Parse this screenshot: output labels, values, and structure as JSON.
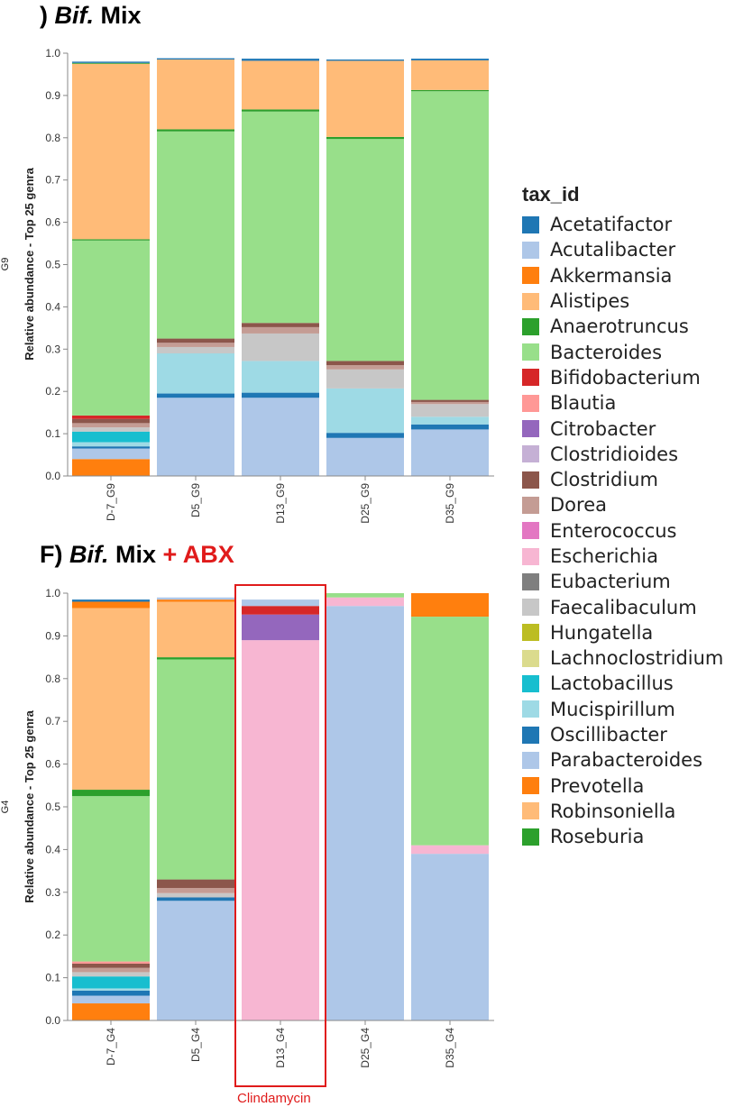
{
  "legend_title": "tax_id",
  "colors": {
    "Acetatifactor": "#1f77b4",
    "Acutalibacter": "#aec7e8",
    "Akkermansia": "#ff7f0e",
    "Alistipes": "#ffbb78",
    "Anaerotruncus": "#2ca02c",
    "Bacteroides": "#98df8a",
    "Bifidobacterium": "#d62728",
    "Blautia": "#ff9896",
    "Citrobacter": "#9467bd",
    "Clostridioides": "#c5b0d5",
    "Clostridium": "#8c564b",
    "Dorea": "#c49c94",
    "Enterococcus": "#e377c2",
    "Escherichia": "#f7b6d2",
    "Eubacterium": "#7f7f7f",
    "Faecalibaculum": "#c7c7c7",
    "Hungatella": "#bcbd22",
    "Lachnoclostridium": "#dbdb8d",
    "Lactobacillus": "#17becf",
    "Mucispirillum": "#9edae5",
    "Oscillibacter": "#1f77b4",
    "Parabacteroides": "#aec7e8",
    "Prevotella": "#ff7f0e",
    "Robinsoniella": "#ffbb78",
    "Roseburia": "#2ca02c"
  },
  "chart_data": [
    {
      "type": "bar",
      "stacked": true,
      "title": ") Bif. Mix",
      "title_parts": [
        {
          "text": ") ",
          "style": "normal"
        },
        {
          "text": "Bif.",
          "style": "italic"
        },
        {
          "text": " Mix",
          "style": "normal"
        }
      ],
      "side_label": "G9",
      "ylabel": "Relative abundance - Top 25 genra",
      "ylim": [
        0,
        1.0
      ],
      "yticks": [
        "0.0",
        "0.1",
        "0.2",
        "0.3",
        "0.4",
        "0.5",
        "0.6",
        "0.7",
        "0.8",
        "0.9",
        "1.0"
      ],
      "grid": false,
      "categories": [
        "D-7_G9",
        "D5_G9",
        "D13_G9",
        "D25_G9",
        "D35_G9"
      ],
      "stacks": [
        [
          [
            "Akkermansia",
            0.04
          ],
          [
            "Acutalibacter",
            0.025
          ],
          [
            "Oscillibacter",
            0.005
          ],
          [
            "Mucispirillum",
            0.01
          ],
          [
            "Lactobacillus",
            0.025
          ],
          [
            "Faecalibaculum",
            0.01
          ],
          [
            "Dorea",
            0.01
          ],
          [
            "Clostridium",
            0.01
          ],
          [
            "Bifidobacterium",
            0.008
          ],
          [
            "Bacteroides",
            0.414
          ],
          [
            "Anaerotruncus",
            0.003
          ],
          [
            "Alistipes",
            0.415
          ],
          [
            "Roseburia",
            0.002
          ],
          [
            "Acetatifactor",
            0.003
          ]
        ],
        [
          [
            "Parabacteroides",
            0.185
          ],
          [
            "Oscillibacter",
            0.01
          ],
          [
            "Mucispirillum",
            0.095
          ],
          [
            "Faecalibaculum",
            0.015
          ],
          [
            "Dorea",
            0.01
          ],
          [
            "Clostridium",
            0.01
          ],
          [
            "Bacteroides",
            0.49
          ],
          [
            "Anaerotruncus",
            0.005
          ],
          [
            "Alistipes",
            0.165
          ],
          [
            "Acetatifactor",
            0.003
          ]
        ],
        [
          [
            "Parabacteroides",
            0.185
          ],
          [
            "Oscillibacter",
            0.012
          ],
          [
            "Mucispirillum",
            0.075
          ],
          [
            "Faecalibaculum",
            0.065
          ],
          [
            "Dorea",
            0.015
          ],
          [
            "Clostridium",
            0.01
          ],
          [
            "Bacteroides",
            0.5
          ],
          [
            "Anaerotruncus",
            0.005
          ],
          [
            "Alistipes",
            0.115
          ],
          [
            "Acetatifactor",
            0.005
          ]
        ],
        [
          [
            "Parabacteroides",
            0.09
          ],
          [
            "Oscillibacter",
            0.012
          ],
          [
            "Mucispirillum",
            0.105
          ],
          [
            "Faecalibaculum",
            0.045
          ],
          [
            "Dorea",
            0.01
          ],
          [
            "Clostridium",
            0.01
          ],
          [
            "Bacteroides",
            0.525
          ],
          [
            "Anaerotruncus",
            0.005
          ],
          [
            "Alistipes",
            0.18
          ],
          [
            "Acetatifactor",
            0.003
          ]
        ],
        [
          [
            "Parabacteroides",
            0.11
          ],
          [
            "Oscillibacter",
            0.012
          ],
          [
            "Mucispirillum",
            0.018
          ],
          [
            "Faecalibaculum",
            0.03
          ],
          [
            "Dorea",
            0.005
          ],
          [
            "Clostridium",
            0.005
          ],
          [
            "Bacteroides",
            0.73
          ],
          [
            "Anaerotruncus",
            0.003
          ],
          [
            "Alistipes",
            0.07
          ],
          [
            "Acetatifactor",
            0.004
          ]
        ]
      ]
    },
    {
      "type": "bar",
      "stacked": true,
      "title": "F) Bif. Mix + ABX",
      "title_parts": [
        {
          "text": "F) ",
          "style": "normal"
        },
        {
          "text": "Bif.",
          "style": "italic"
        },
        {
          "text": " Mix ",
          "style": "normal"
        },
        {
          "text": "+ ABX",
          "style": "red"
        }
      ],
      "side_label": "G4",
      "ylabel": "Relative abundance - Top 25 genra",
      "ylim": [
        0,
        1.0
      ],
      "yticks": [
        "0.0",
        "0.1",
        "0.2",
        "0.3",
        "0.4",
        "0.5",
        "0.6",
        "0.7",
        "0.8",
        "0.9",
        "1.0"
      ],
      "grid": false,
      "categories": [
        "D-7_G4",
        "D5_G4",
        "D13_G4",
        "D25_G4",
        "D35_G4"
      ],
      "annotation": {
        "category": "D13_G4",
        "text": "Clindamycin",
        "color": "#e01b1b"
      },
      "stacks": [
        [
          [
            "Akkermansia",
            0.04
          ],
          [
            "Acutalibacter",
            0.018
          ],
          [
            "Oscillibacter",
            0.012
          ],
          [
            "Mucispirillum",
            0.005
          ],
          [
            "Lactobacillus",
            0.028
          ],
          [
            "Faecalibaculum",
            0.01
          ],
          [
            "Dorea",
            0.01
          ],
          [
            "Clostridium",
            0.01
          ],
          [
            "Blautia",
            0.005
          ],
          [
            "Bacteroides",
            0.387
          ],
          [
            "Anaerotruncus",
            0.015
          ],
          [
            "Alistipes",
            0.425
          ],
          [
            "Prevotella",
            0.015
          ],
          [
            "Acetatifactor",
            0.005
          ]
        ],
        [
          [
            "Parabacteroides",
            0.28
          ],
          [
            "Oscillibacter",
            0.008
          ],
          [
            "Faecalibaculum",
            0.01
          ],
          [
            "Dorea",
            0.012
          ],
          [
            "Clostridium",
            0.02
          ],
          [
            "Bacteroides",
            0.515
          ],
          [
            "Anaerotruncus",
            0.005
          ],
          [
            "Alistipes",
            0.13
          ],
          [
            "Prevotella",
            0.005
          ],
          [
            "Acutalibacter",
            0.005
          ]
        ],
        [
          [
            "Escherichia",
            0.89
          ],
          [
            "Citrobacter",
            0.06
          ],
          [
            "Bifidobacterium",
            0.02
          ],
          [
            "Parabacteroides",
            0.015
          ]
        ],
        [
          [
            "Parabacteroides",
            0.97
          ],
          [
            "Escherichia",
            0.02
          ],
          [
            "Bacteroides",
            0.01
          ]
        ],
        [
          [
            "Parabacteroides",
            0.39
          ],
          [
            "Escherichia",
            0.02
          ],
          [
            "Bacteroides",
            0.535
          ],
          [
            "Prevotella",
            0.055
          ]
        ]
      ]
    }
  ]
}
